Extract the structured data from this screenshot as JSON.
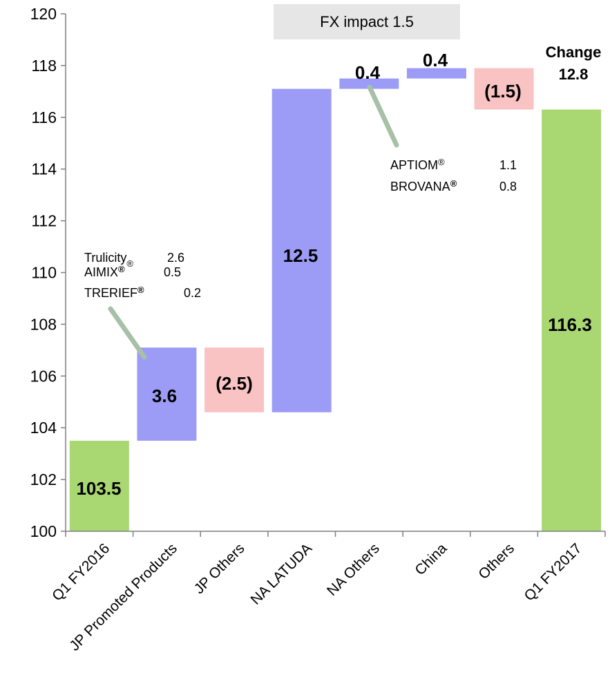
{
  "chart_data": {
    "type": "waterfall",
    "ylim": [
      100,
      120
    ],
    "yticks": [
      100,
      102,
      104,
      106,
      108,
      110,
      112,
      114,
      116,
      118,
      120
    ],
    "bars": [
      {
        "category": "Q1 FY2016",
        "kind": "total",
        "start": 100,
        "end": 103.5,
        "label": "103.5"
      },
      {
        "category": "JP Promoted Products",
        "kind": "increase",
        "start": 103.5,
        "end": 107.1,
        "label": "3.6"
      },
      {
        "category": "JP Others",
        "kind": "decrease",
        "start": 107.1,
        "end": 104.6,
        "label": "(2.5)"
      },
      {
        "category": "NA LATUDA",
        "kind": "increase",
        "start": 104.6,
        "end": 117.1,
        "label": "12.5"
      },
      {
        "category": "NA Others",
        "kind": "increase",
        "start": 117.1,
        "end": 117.5,
        "label": "0.4"
      },
      {
        "category": "China",
        "kind": "increase",
        "start": 117.5,
        "end": 117.9,
        "label": "0.4"
      },
      {
        "category": "Others",
        "kind": "decrease",
        "start": 117.9,
        "end": 116.3,
        "label": "(1.5)"
      },
      {
        "category": "Q1 FY2017",
        "kind": "total",
        "start": 100,
        "end": 116.3,
        "label": "116.3"
      }
    ],
    "colors": {
      "total": "#a9d772",
      "increase": "#9c9cf7",
      "decrease": "#f9c3c3",
      "fx_box": "#e6e6e6",
      "leader": "#a7c0a7",
      "axis": "#7f7f7f"
    },
    "fx_label": "FX impact 1.5",
    "change": {
      "line1": "Change",
      "line2": "12.8"
    },
    "annotations": {
      "jp_promoted": [
        {
          "name": "Trulicity",
          "mark": "®",
          "value": "2.6"
        },
        {
          "name": "AIMIX",
          "mark": "®",
          "value": "0.5"
        },
        {
          "name": "TRERIEF",
          "mark": "®",
          "value": "0.2"
        }
      ],
      "na_others": [
        {
          "name": "APTIOM",
          "mark": "®",
          "value": "1.1"
        },
        {
          "name": "BROVANA",
          "mark": "®",
          "value": "0.8"
        }
      ]
    }
  }
}
